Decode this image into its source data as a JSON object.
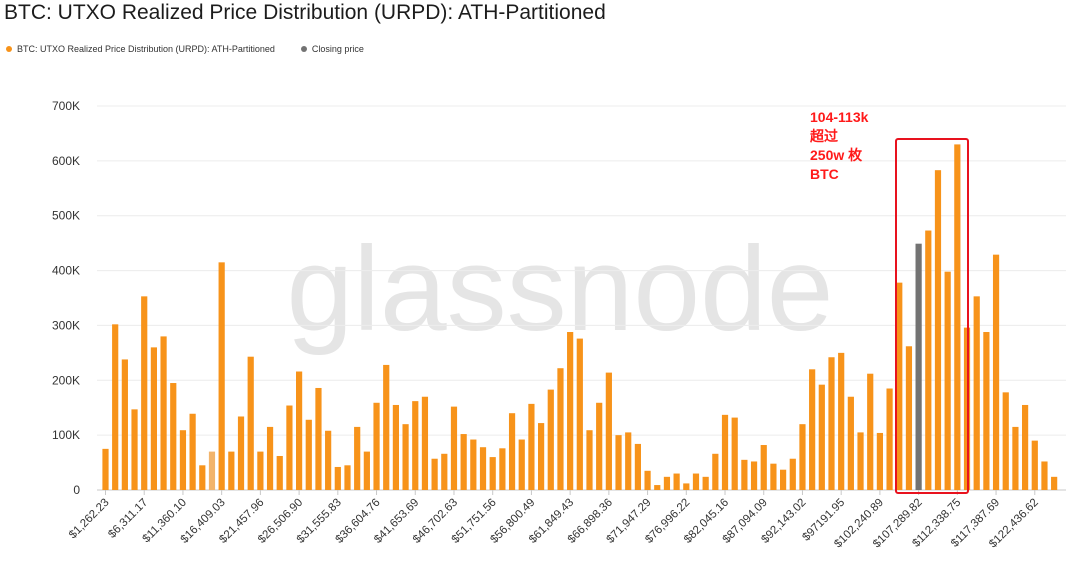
{
  "title": "BTC: UTXO Realized Price Distribution (URPD): ATH-Partitioned",
  "legend": [
    {
      "label": "BTC: UTXO Realized Price Distribution (URPD): ATH-Partitioned",
      "color": "#f7931a"
    },
    {
      "label": "Closing price",
      "color": "#737373"
    }
  ],
  "watermark": "glassnode",
  "annotation": {
    "lines": [
      "104-113k",
      "超过",
      "250w 枚",
      "BTC"
    ],
    "color": "#ff1a1a"
  },
  "chart_data": {
    "type": "bar",
    "ylim": [
      0,
      700000
    ],
    "yticks": [
      0,
      100000,
      200000,
      300000,
      400000,
      500000,
      600000,
      700000
    ],
    "ytick_labels": [
      "0",
      "100K",
      "200K",
      "300K",
      "400K",
      "500K",
      "600K",
      "700K"
    ],
    "xtick_labels": [
      "$1,262.23",
      "$6,311.17",
      "$11,360.10",
      "$16,409.03",
      "$21,457.96",
      "$26,506.90",
      "$31,555.83",
      "$36,604.76",
      "$41,653.69",
      "$46,702.63",
      "$51,751.56",
      "$56,800.49",
      "$61,849.43",
      "$66,898.36",
      "$71,947.29",
      "$76,996.22",
      "$82,045.16",
      "$87,094.09",
      "$92,143.02",
      "$97191.95",
      "$102,240.89",
      "$107,289.82",
      "$112,338.75",
      "$117,387.69",
      "$122,436.62"
    ],
    "bar_colors": {
      "default": "#f7931a",
      "closing": "#737373",
      "highlight": "#f2b46b"
    },
    "closing_index": 84,
    "light_index": 11,
    "values": [
      75000,
      302000,
      238000,
      147000,
      353000,
      260000,
      280000,
      195000,
      109000,
      139000,
      45000,
      70000,
      415000,
      70000,
      134000,
      243000,
      70000,
      115000,
      62000,
      154000,
      216000,
      128000,
      186000,
      108000,
      42000,
      45000,
      115000,
      70000,
      159000,
      228000,
      155000,
      120000,
      162000,
      170000,
      57000,
      66000,
      152000,
      102000,
      92000,
      78000,
      60000,
      76000,
      140000,
      92000,
      157000,
      122000,
      183000,
      222000,
      288000,
      276000,
      109000,
      159000,
      214000,
      100000,
      105000,
      84000,
      35000,
      9000,
      24000,
      30000,
      12000,
      30000,
      24000,
      66000,
      137000,
      132000,
      55000,
      52000,
      82000,
      48000,
      37000,
      57000,
      120000,
      220000,
      192000,
      242000,
      250000,
      170000,
      105000,
      212000,
      104000,
      185000,
      378000,
      262000,
      449000,
      473000,
      583000,
      398000,
      630000,
      296000,
      353000,
      288000,
      429000,
      178000,
      115000,
      155000,
      90000,
      52000,
      24000
    ]
  }
}
